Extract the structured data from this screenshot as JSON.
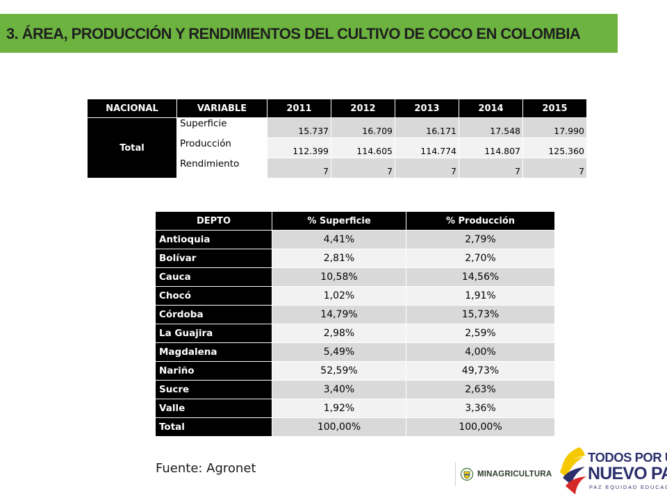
{
  "title": "3. ÁREA, PRODUCCIÓN Y RENDIMIENTOS DEL CULTIVO DE COCO EN COLOMBIA",
  "national_table": {
    "headers": [
      "NACIONAL",
      "VARIABLE",
      "2011",
      "2012",
      "2013",
      "2014",
      "2015"
    ],
    "group_label": "Total",
    "rows": [
      {
        "variable": "Superficie",
        "values": [
          "15.737",
          "16.709",
          "16.171",
          "17.548",
          "17.990"
        ]
      },
      {
        "variable": "Producción",
        "values": [
          "112.399",
          "114.605",
          "114.774",
          "114.807",
          "125.360"
        ]
      },
      {
        "variable": "Rendimiento",
        "values": [
          "7",
          "7",
          "7",
          "7",
          "7"
        ]
      }
    ]
  },
  "department_table": {
    "headers": [
      "DEPTO",
      "% Superficie",
      "% Producción"
    ],
    "rows": [
      {
        "depto": "Antioquia",
        "superficie": "4,41%",
        "produccion": "2,79%"
      },
      {
        "depto": "Bolívar",
        "superficie": "2,81%",
        "produccion": "2,70%"
      },
      {
        "depto": "Cauca",
        "superficie": "10,58%",
        "produccion": "14,56%"
      },
      {
        "depto": "Chocó",
        "superficie": "1,02%",
        "produccion": "1,91%"
      },
      {
        "depto": "Córdoba",
        "superficie": "14,79%",
        "produccion": "15,73%"
      },
      {
        "depto": "La Guajira",
        "superficie": "2,98%",
        "produccion": "2,59%"
      },
      {
        "depto": "Magdalena",
        "superficie": "5,49%",
        "produccion": "4,00%"
      },
      {
        "depto": "Nariño",
        "superficie": "52,59%",
        "produccion": "49,73%"
      },
      {
        "depto": "Sucre",
        "superficie": "3,40%",
        "produccion": "2,63%"
      },
      {
        "depto": "Valle",
        "superficie": "1,92%",
        "produccion": "3,36%"
      },
      {
        "depto": "Total",
        "superficie": "100,00%",
        "produccion": "100,00%"
      }
    ]
  },
  "source": "Fuente: Agronet",
  "logos": {
    "minagricultura": "MINAGRICULTURA",
    "tpun_line1": "TODOS POR UN",
    "tpun_line2": "NUEVO PAÍS",
    "tpun_line3": "PAZ  EQUIDAD  EDUCACIÓN"
  },
  "colors": {
    "title_bar": "#6cb33f",
    "header_bg": "#000000",
    "row_dark": "#d9d9d9",
    "row_light": "#f2f2f2",
    "logo_blue": "#2b2f6b",
    "logo_yellow": "#f6c800",
    "logo_red": "#d62828"
  }
}
